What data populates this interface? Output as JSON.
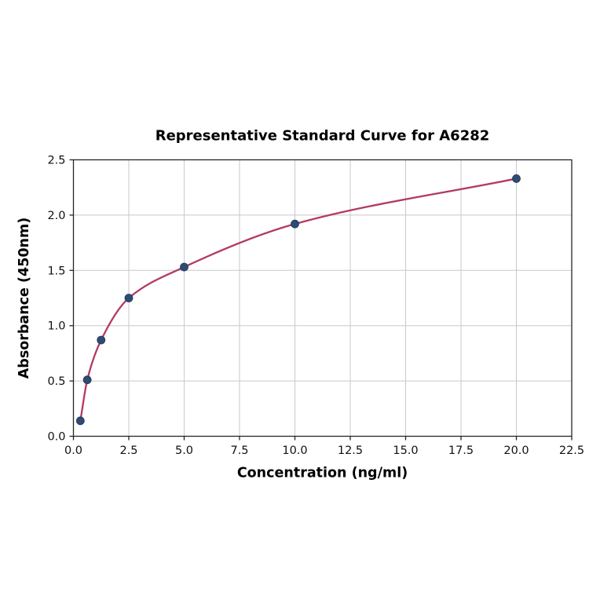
{
  "chart_data": {
    "type": "scatter",
    "title": "Representative Standard Curve for A6282",
    "xlabel": "Concentration (ng/ml)",
    "ylabel": "Absorbance (450nm)",
    "x": [
      0.313,
      0.625,
      1.25,
      2.5,
      5.0,
      10.0,
      20.0
    ],
    "y": [
      0.14,
      0.51,
      0.87,
      1.25,
      1.53,
      1.92,
      2.33
    ],
    "xlim": [
      0.0,
      22.5
    ],
    "ylim": [
      0.0,
      2.5
    ],
    "x_tick_labels": [
      "0.0",
      "2.5",
      "5.0",
      "7.5",
      "10.0",
      "12.5",
      "15.0",
      "17.5",
      "20.0",
      "22.5"
    ],
    "y_tick_labels": [
      "0.0",
      "0.5",
      "1.0",
      "1.5",
      "2.0",
      "2.5"
    ],
    "grid": true,
    "legend_position": "none",
    "curve_style": "smooth saturating fit through data points",
    "colors": {
      "curve": "#b23a66",
      "marker": "#2e4b72",
      "marker_edge": "#24395a",
      "grid": "#c9c9c9",
      "spine": "#262626",
      "text": "#000000",
      "background": "#ffffff"
    }
  }
}
